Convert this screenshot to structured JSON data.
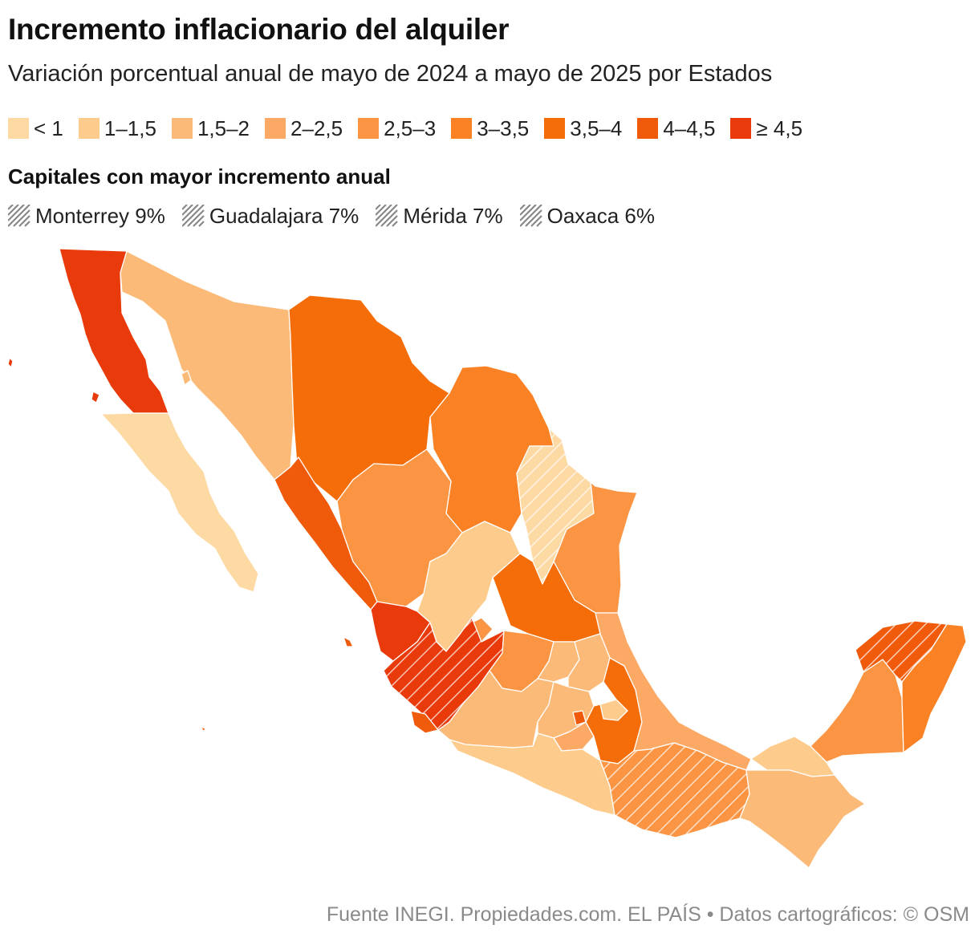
{
  "title": "Incremento inflacionario del alquiler",
  "subtitle": "Variación porcentual anual de mayo de 2024 a mayo de 2025 por Estados",
  "legend": [
    {
      "label": "< 1",
      "color": "#fdd9a3"
    },
    {
      "label": "1–1,5",
      "color": "#fdcb8c"
    },
    {
      "label": "1,5–2",
      "color": "#fcba78"
    },
    {
      "label": "2–2,5",
      "color": "#fca965"
    },
    {
      "label": "2,5–3",
      "color": "#fb9543"
    },
    {
      "label": "3–3,5",
      "color": "#fa8124"
    },
    {
      "label": "3,5–4",
      "color": "#f56d09"
    },
    {
      "label": "4–4,5",
      "color": "#f05a0b"
    },
    {
      "label": "≥ 4,5",
      "color": "#e83a0a"
    }
  ],
  "capitals_heading": "Capitales con mayor incremento anual",
  "capitals": [
    {
      "label": "Monterrey 9%"
    },
    {
      "label": "Guadalajara 7%"
    },
    {
      "label": "Mérida 7%"
    },
    {
      "label": "Oaxaca 6%"
    }
  ],
  "footer": "Fuente INEGI. Propiedades.com. EL PAÍS  • Datos cartográficos: © OSM"
}
